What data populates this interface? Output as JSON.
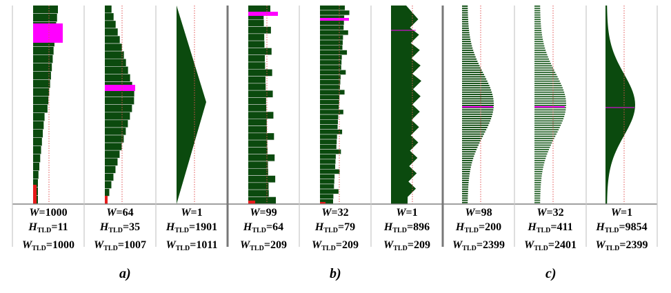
{
  "colors": {
    "fill": "#0b4a0e",
    "highlight": "#ff00ff",
    "red": "#e51a1a",
    "axis": "#808080",
    "line": "#e05050"
  },
  "groups": [
    {
      "label": "a)"
    },
    {
      "label": "b)"
    },
    {
      "label": "c)"
    }
  ],
  "panels": [
    {
      "w_label": "W",
      "w": "1000",
      "h_label": "H",
      "tld": "TLD",
      "h_tld": "11",
      "w_label2": "W",
      "w_tld": "1000",
      "style": "steps-left",
      "group": 0
    },
    {
      "w_label": "W",
      "w": "64",
      "h_label": "H",
      "tld": "TLD",
      "h_tld": "35",
      "w_label2": "W",
      "w_tld": "1007",
      "style": "steps-diamond",
      "group": 0
    },
    {
      "w_label": "W",
      "w": "1",
      "h_label": "H",
      "tld": "TLD",
      "h_tld": "1901",
      "w_label2": "W",
      "w_tld": "1011",
      "style": "smooth-diamond",
      "group": 0
    },
    {
      "w_label": "W",
      "w": "99",
      "h_label": "H",
      "tld": "TLD",
      "h_tld": "64",
      "w_label2": "W",
      "w_tld": "209",
      "style": "steps-top",
      "group": 1
    },
    {
      "w_label": "W",
      "w": "32",
      "h_label": "H",
      "tld": "TLD",
      "h_tld": "79",
      "w_label2": "W",
      "w_tld": "209",
      "style": "steps-jagged",
      "group": 1
    },
    {
      "w_label": "W",
      "w": "1",
      "h_label": "H",
      "tld": "TLD",
      "h_tld": "896",
      "w_label2": "W",
      "w_tld": "209",
      "style": "sawtooth",
      "group": 1
    },
    {
      "w_label": "W",
      "w": "98",
      "h_label": "H",
      "tld": "TLD",
      "h_tld": "200",
      "w_label2": "W",
      "w_tld": "2399",
      "style": "lines-bell",
      "group": 2
    },
    {
      "w_label": "W",
      "w": "32",
      "h_label": "H",
      "tld": "TLD",
      "h_tld": "411",
      "w_label2": "W",
      "w_tld": "2401",
      "style": "lines-bell-light",
      "group": 2
    },
    {
      "w_label": "W",
      "w": "1",
      "h_label": "H",
      "tld": "TLD",
      "h_tld": "9854",
      "w_label2": "W",
      "w_tld": "2399",
      "style": "smooth-bell",
      "group": 2
    }
  ]
}
